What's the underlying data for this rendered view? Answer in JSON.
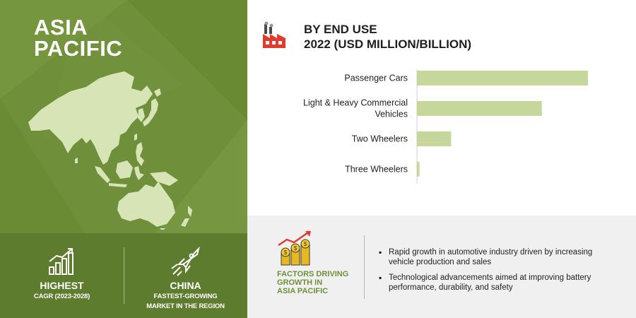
{
  "region": {
    "title_line1": "ASIA",
    "title_line2": "PACIFIC"
  },
  "stats": [
    {
      "icon": "growth-bar-icon",
      "big": "HIGHEST",
      "small_line1": "CAGR (2023-2028)",
      "small_line2": ""
    },
    {
      "icon": "rocket-launch-icon",
      "big": "CHINA",
      "small_line1": "FASTEST-GROWING",
      "small_line2": "MARKET IN THE REGION"
    }
  ],
  "chart_header": {
    "icon": "factory-icon",
    "line1": "BY END USE",
    "line2": "2022 (USD MILLION/BILLION)"
  },
  "chart_data": {
    "type": "bar",
    "orientation": "horizontal",
    "categories": [
      [
        "Passenger Cars"
      ],
      [
        "Light & Heavy Commercial",
        "Vehicles"
      ],
      [
        "Two Wheelers"
      ],
      [
        "Three Wheelers"
      ]
    ],
    "values": [
      100,
      73,
      20,
      1.5
    ],
    "xlim": [
      0,
      100
    ],
    "bar_color": "#c5d79a",
    "grid": false
  },
  "factors": {
    "icon": "coins-growth-icon",
    "title_line1": "FACTORS DRIVING",
    "title_line2": "GROWTH IN",
    "title_line3": "ASIA PACIFIC",
    "bullets": [
      "Rapid growth in automotive industry driven by increasing vehicle production and sales",
      "Technological advancements aimed at improving battery performance, durability, and safety"
    ]
  },
  "colors": {
    "panel_green": "#6f8f3a",
    "panel_green_dark": "#5e7c2e",
    "map_fill": "#d7e4b6",
    "bar": "#c5d79a",
    "factor_title": "#6f8f3a"
  }
}
